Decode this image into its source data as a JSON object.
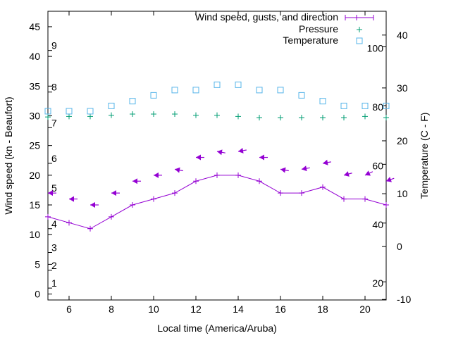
{
  "chart_data": {
    "type": "line",
    "xlabel": "Local time (America/Aruba)",
    "ylabel": "Wind speed (kn - Beaufort)",
    "y2label": "Temperature (C - F)",
    "xlim": [
      5,
      21
    ],
    "ylim": [
      -1,
      47.6
    ],
    "y2lim": [
      -10.1,
      44.5
    ],
    "xticks": [
      6,
      8,
      10,
      12,
      14,
      16,
      18,
      20
    ],
    "yticks": [
      0,
      5,
      10,
      15,
      20,
      25,
      30,
      35,
      40,
      45
    ],
    "y2ticks": [
      -10,
      0,
      10,
      20,
      30,
      40
    ],
    "beaufort_labels": [
      {
        "label": "1",
        "knots": 1
      },
      {
        "label": "2",
        "knots": 4
      },
      {
        "label": "3",
        "knots": 7
      },
      {
        "label": "4",
        "knots": 11
      },
      {
        "label": "5",
        "knots": 17
      },
      {
        "label": "6",
        "knots": 22
      },
      {
        "label": "7",
        "knots": 28
      },
      {
        "label": "8",
        "knots": 34
      },
      {
        "label": "9",
        "knots": 41
      }
    ],
    "fahrenheit_labels": [
      {
        "label": "20",
        "f": 20
      },
      {
        "label": "40",
        "f": 40
      },
      {
        "label": "60",
        "f": 60
      },
      {
        "label": "80",
        "f": 80
      },
      {
        "label": "100",
        "f": 100
      }
    ],
    "legend_position": "top-right",
    "x": [
      5,
      6,
      7,
      8,
      9,
      10,
      11,
      12,
      13,
      14,
      15,
      16,
      17,
      18,
      19,
      20,
      21
    ],
    "series": [
      {
        "name": "Wind speed, gusts, and direction",
        "color": "#9400d3",
        "values": [
          13,
          12,
          11,
          13,
          15,
          16,
          17,
          19,
          20,
          20,
          19,
          17,
          17,
          18,
          16,
          16,
          15
        ],
        "gusts": [
          17,
          16,
          15,
          17,
          19,
          20,
          21,
          23,
          24,
          24,
          23,
          21,
          21,
          22,
          20,
          20,
          19
        ],
        "direction_deg": [
          90,
          90,
          90,
          90,
          90,
          90,
          100,
          90,
          100,
          80,
          90,
          100,
          80,
          80,
          75,
          65,
          70
        ]
      },
      {
        "name": "Pressure",
        "color": "#009e73",
        "axis": "left",
        "values": [
          29.8,
          29.9,
          29.9,
          30.1,
          30.3,
          30.3,
          30.3,
          30.1,
          30.1,
          29.9,
          29.7,
          29.7,
          29.7,
          29.7,
          29.7,
          29.9,
          29.7
        ]
      },
      {
        "name": "Temperature",
        "color": "#56b4e9",
        "axis": "right",
        "values": [
          25.6,
          25.6,
          25.6,
          26.6,
          27.5,
          28.6,
          29.6,
          29.6,
          30.6,
          30.6,
          29.6,
          29.6,
          28.6,
          27.5,
          26.6,
          26.6,
          26.6
        ]
      }
    ]
  }
}
